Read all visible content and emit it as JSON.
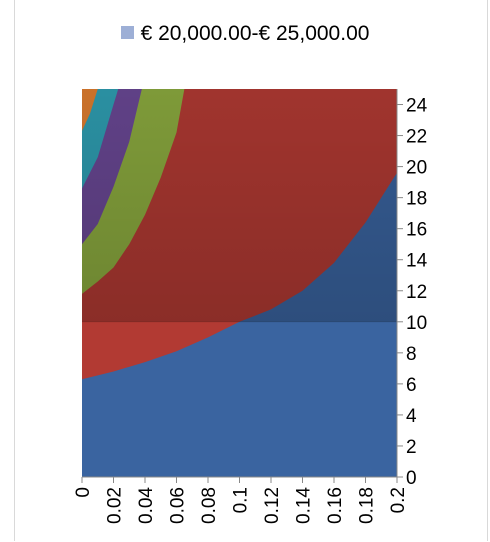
{
  "chart_data": {
    "type": "area",
    "legend": {
      "position": "top",
      "entries": [
        {
          "name": "€ 20,000.00-€ 25,000.00",
          "color": "#9dafd6"
        }
      ]
    },
    "x_ticks": [
      "0",
      "0.02",
      "0.04",
      "0.06",
      "0.08",
      "0.1",
      "0.12",
      "0.14",
      "0.16",
      "0.18",
      "0.2"
    ],
    "y_ticks": [
      "0",
      "2",
      "4",
      "6",
      "8",
      "10",
      "12",
      "14",
      "16",
      "18",
      "20",
      "22",
      "24"
    ],
    "xlim": [
      0,
      0.2
    ],
    "ylim": [
      0,
      25
    ],
    "y_axis_side": "right",
    "grid": false,
    "bands": [
      {
        "color": "#3a64a0",
        "boundary": [
          [
            0,
            6.3
          ],
          [
            0.02,
            6.8
          ],
          [
            0.04,
            7.4
          ],
          [
            0.06,
            8.1
          ],
          [
            0.08,
            9.0
          ],
          [
            0.1,
            10.0
          ],
          [
            0.12,
            10.8
          ],
          [
            0.14,
            12.0
          ],
          [
            0.16,
            13.8
          ],
          [
            0.18,
            16.4
          ],
          [
            0.2,
            19.6
          ]
        ]
      },
      {
        "color": "#b23a33",
        "boundary": [
          [
            0,
            11.8
          ],
          [
            0.01,
            12.6
          ],
          [
            0.02,
            13.5
          ],
          [
            0.03,
            15.0
          ],
          [
            0.04,
            16.9
          ],
          [
            0.05,
            19.3
          ],
          [
            0.06,
            22.2
          ],
          [
            0.065,
            25.0
          ]
        ]
      },
      {
        "color": "#8cab3f",
        "boundary": [
          [
            0,
            15.0
          ],
          [
            0.01,
            16.3
          ],
          [
            0.02,
            18.7
          ],
          [
            0.03,
            21.6
          ],
          [
            0.038,
            25.0
          ]
        ]
      },
      {
        "color": "#6a4895",
        "boundary": [
          [
            0,
            18.6
          ],
          [
            0.01,
            20.6
          ],
          [
            0.02,
            24.0
          ],
          [
            0.023,
            25.0
          ]
        ]
      },
      {
        "color": "#2f9fb3",
        "boundary": [
          [
            0,
            22.3
          ],
          [
            0.005,
            23.4
          ],
          [
            0.01,
            25.0
          ]
        ]
      },
      {
        "color": "#e07e2f",
        "boundary": [
          [
            0,
            24.4
          ],
          [
            0.002,
            24.8
          ],
          [
            0.003,
            25.0
          ]
        ]
      }
    ]
  }
}
